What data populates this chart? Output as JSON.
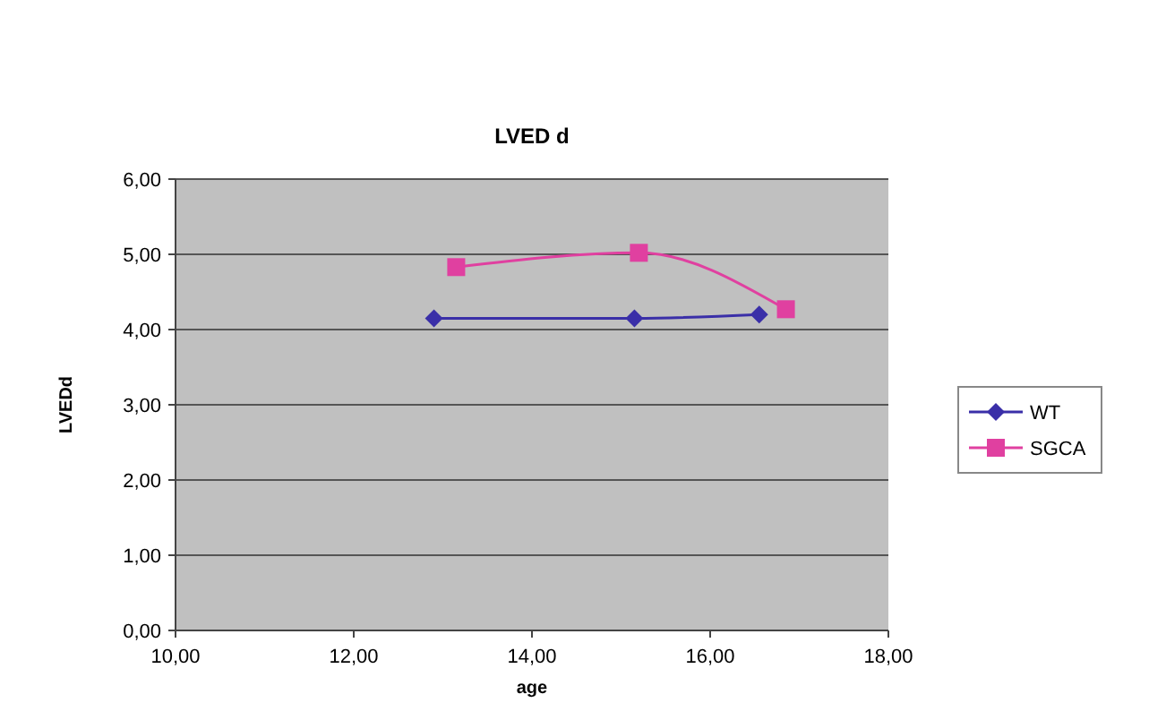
{
  "chart_data": {
    "type": "line",
    "title": "LVED d",
    "xlabel": "age",
    "ylabel": "LVEDd",
    "xlim": [
      10,
      18
    ],
    "xticks": [
      {
        "value": 10,
        "label": "10,00"
      },
      {
        "value": 12,
        "label": "12,00"
      },
      {
        "value": 14,
        "label": "14,00"
      },
      {
        "value": 16,
        "label": "16,00"
      },
      {
        "value": 18,
        "label": "18,00"
      }
    ],
    "ylim": [
      0,
      6
    ],
    "yticks": [
      {
        "value": 0,
        "label": "0,00"
      },
      {
        "value": 1,
        "label": "1,00"
      },
      {
        "value": 2,
        "label": "2,00"
      },
      {
        "value": 3,
        "label": "3,00"
      },
      {
        "value": 4,
        "label": "4,00"
      },
      {
        "value": 5,
        "label": "5,00"
      },
      {
        "value": 6,
        "label": "6,00"
      }
    ],
    "grid": "y",
    "legend": "right",
    "series": [
      {
        "name": "WT",
        "color": "#3a2fa8",
        "marker": "diamond",
        "x": [
          12.9,
          15.15,
          16.55
        ],
        "values": [
          4.15,
          4.15,
          4.2
        ]
      },
      {
        "name": "SGCA",
        "color": "#e040a0",
        "marker": "square",
        "x": [
          13.15,
          15.2,
          16.85
        ],
        "values": [
          4.83,
          5.02,
          4.27
        ]
      }
    ]
  }
}
